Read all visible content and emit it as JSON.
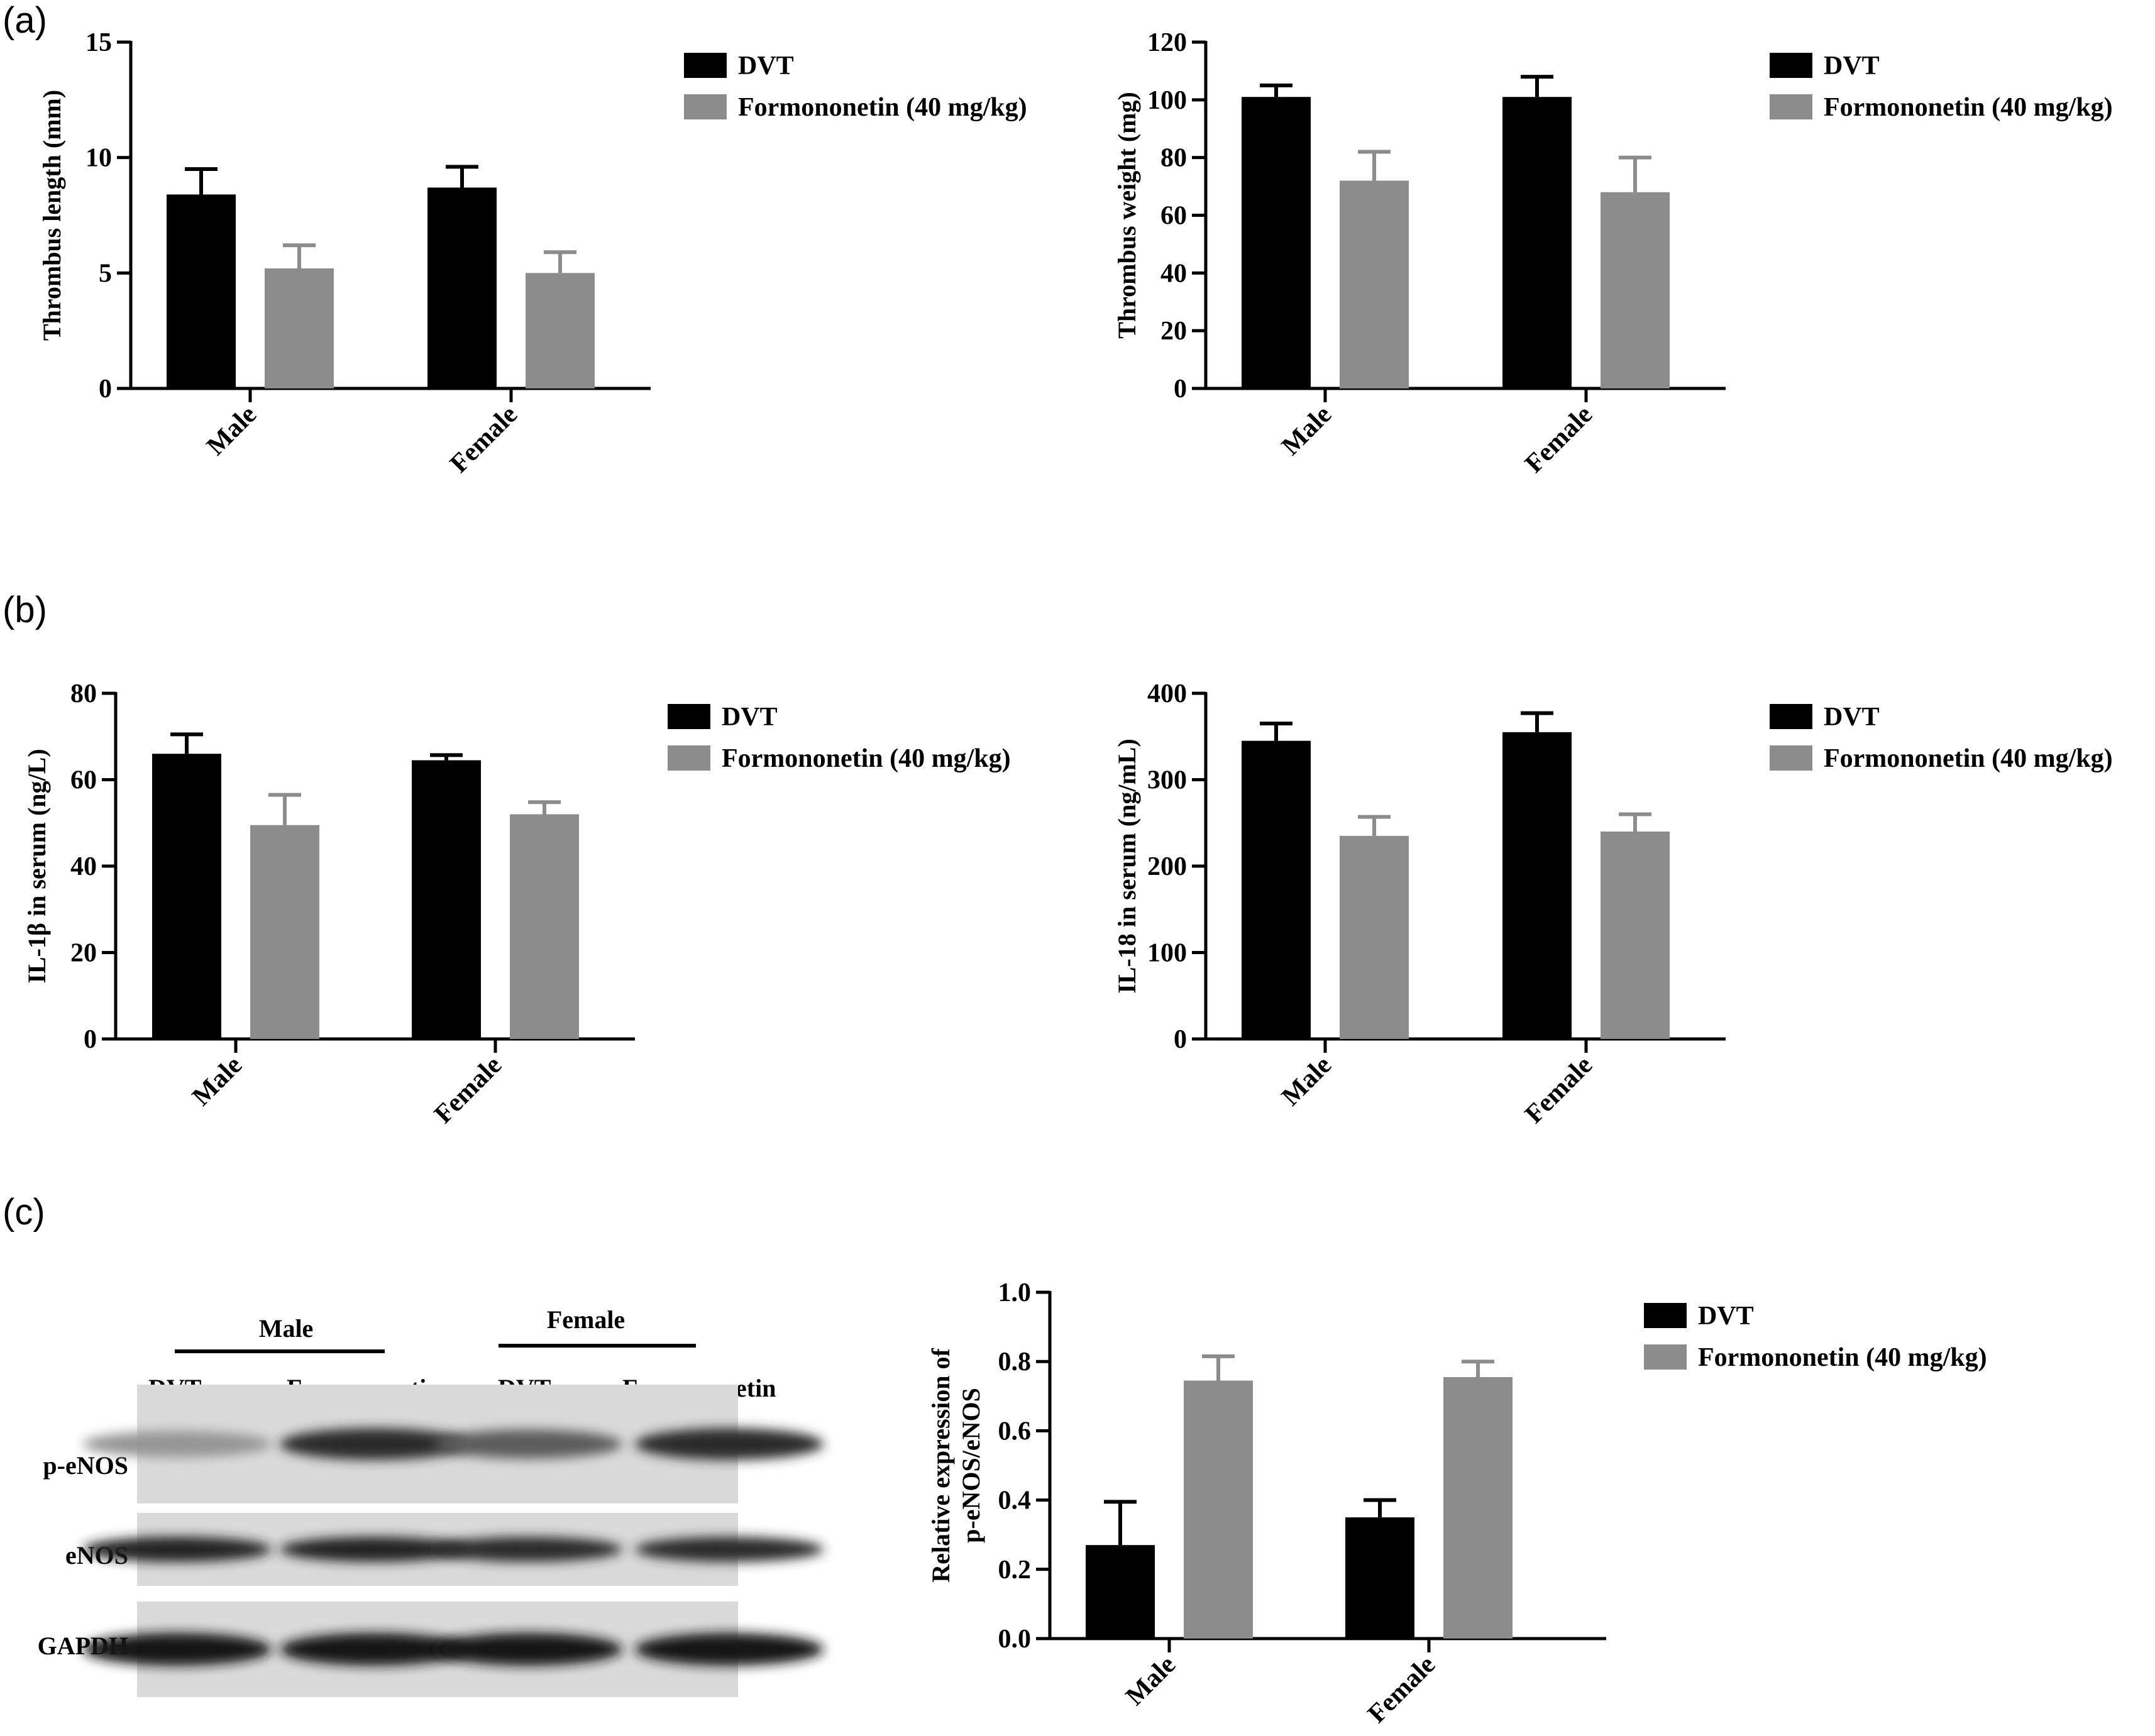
{
  "panel_labels": [
    "(a)",
    "(b)",
    "(c)"
  ],
  "colors": {
    "DVT": "#000000",
    "Formononetin (40 mg/kg)": "#8c8c8c",
    "axis": "#000000"
  },
  "chart_data": [
    {
      "panel": "(a)",
      "type": "bar",
      "categories": [
        "Male",
        "Female"
      ],
      "ylabel": "Thrombus length (mm)",
      "ylim": [
        0,
        15
      ],
      "yticks": [
        0,
        5,
        10,
        15
      ],
      "legend_position": "right",
      "series": [
        {
          "name": "DVT",
          "values": [
            8.4,
            8.7
          ],
          "errors": [
            1.1,
            0.9
          ]
        },
        {
          "name": "Formononetin (40 mg/kg)",
          "values": [
            5.2,
            5.0
          ],
          "errors": [
            1.0,
            0.9
          ]
        }
      ]
    },
    {
      "panel": "(a)",
      "type": "bar",
      "categories": [
        "Male",
        "Female"
      ],
      "ylabel": "Thrombus weight (mg)",
      "ylim": [
        0,
        120
      ],
      "yticks": [
        0,
        20,
        40,
        60,
        80,
        100,
        120
      ],
      "legend_position": "right",
      "series": [
        {
          "name": "DVT",
          "values": [
            101,
            101
          ],
          "errors": [
            4,
            7
          ]
        },
        {
          "name": "Formononetin (40 mg/kg)",
          "values": [
            72,
            68
          ],
          "errors": [
            10,
            12
          ]
        }
      ]
    },
    {
      "panel": "(b)",
      "type": "bar",
      "categories": [
        "Male",
        "Female"
      ],
      "ylabel": "IL-1β in serum (ng/L)",
      "ylim": [
        0,
        80
      ],
      "yticks": [
        0,
        20,
        40,
        60,
        80
      ],
      "legend_position": "right",
      "series": [
        {
          "name": "DVT",
          "values": [
            66,
            64.5
          ],
          "errors": [
            4.5,
            1.2
          ]
        },
        {
          "name": "Formononetin (40 mg/kg)",
          "values": [
            49.5,
            52
          ],
          "errors": [
            7,
            2.8
          ]
        }
      ]
    },
    {
      "panel": "(b)",
      "type": "bar",
      "categories": [
        "Male",
        "Female"
      ],
      "ylabel": "IL-18 in serum (ng/mL)",
      "ylim": [
        0,
        400
      ],
      "yticks": [
        0,
        100,
        200,
        300,
        400
      ],
      "legend_position": "right",
      "series": [
        {
          "name": "DVT",
          "values": [
            345,
            355
          ],
          "errors": [
            20,
            22
          ]
        },
        {
          "name": "Formononetin (40 mg/kg)",
          "values": [
            235,
            240
          ],
          "errors": [
            22,
            20
          ]
        }
      ]
    },
    {
      "panel": "(c)",
      "type": "bar",
      "categories": [
        "Male",
        "Female"
      ],
      "ylabel": "Relative expression of p-eNOS/eNOS",
      "ylabel_lines": [
        "Relative expression of",
        "p-eNOS/eNOS"
      ],
      "ylim": [
        0,
        1.0
      ],
      "yticks": [
        0.0,
        0.2,
        0.4,
        0.6,
        0.8,
        1.0
      ],
      "ytick_decimals": 1,
      "legend_position": "right",
      "series": [
        {
          "name": "DVT",
          "values": [
            0.27,
            0.35
          ],
          "errors": [
            0.125,
            0.05
          ]
        },
        {
          "name": "Formononetin (40 mg/kg)",
          "values": [
            0.745,
            0.755
          ],
          "errors": [
            0.07,
            0.045
          ]
        }
      ]
    }
  ],
  "western_blot": {
    "groups": [
      {
        "label": "Male",
        "lanes": [
          "DVT",
          "Formononetin"
        ]
      },
      {
        "label": "Female",
        "lanes": [
          "DVT",
          "Formononetin"
        ]
      }
    ],
    "rows": [
      {
        "label": "p-eNOS",
        "intensities": [
          0.35,
          0.9,
          0.65,
          0.9
        ]
      },
      {
        "label": "eNOS",
        "intensities": [
          0.95,
          0.95,
          0.9,
          0.9
        ]
      },
      {
        "label": "GAPDH",
        "intensities": [
          1.0,
          1.0,
          1.0,
          1.0
        ]
      }
    ]
  }
}
